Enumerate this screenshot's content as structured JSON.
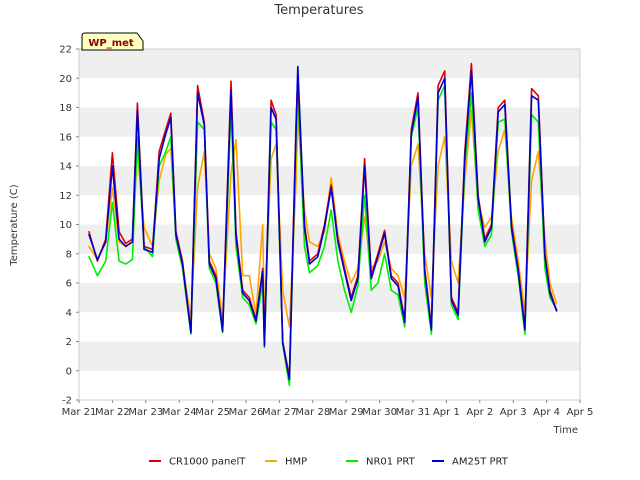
{
  "chart_data": {
    "type": "line",
    "title": "Temperatures",
    "xlabel": "Time",
    "ylabel": "Temperature (C)",
    "ylim": [
      -2,
      22
    ],
    "y_ticks": [
      -2,
      0,
      2,
      4,
      6,
      8,
      10,
      12,
      14,
      16,
      18,
      20,
      22
    ],
    "xlim_days": [
      0,
      15
    ],
    "x_ticks": [
      "Mar 21",
      "Mar 22",
      "Mar 23",
      "Mar 24",
      "Mar 25",
      "Mar 26",
      "Mar 27",
      "Mar 28",
      "Mar 29",
      "Mar 30",
      "Mar 31",
      "Apr 1",
      "Apr 2",
      "Apr 3",
      "Apr 4",
      "Apr 5"
    ],
    "grid": "horizontal bands",
    "legend_position": "bottom",
    "badge": "WP_met",
    "series": [
      {
        "name": "CR1000 panelT",
        "color": "#dd0000",
        "x": [
          0.3,
          0.55,
          0.8,
          1.0,
          1.2,
          1.4,
          1.6,
          1.75,
          1.95,
          2.2,
          2.4,
          2.6,
          2.75,
          2.9,
          3.1,
          3.35,
          3.55,
          3.75,
          3.9,
          4.1,
          4.3,
          4.55,
          4.7,
          4.9,
          5.1,
          5.3,
          5.5,
          5.55,
          5.75,
          5.9,
          6.1,
          6.3,
          6.5,
          6.55,
          6.75,
          6.9,
          7.15,
          7.35,
          7.55,
          7.75,
          7.95,
          8.15,
          8.35,
          8.55,
          8.75,
          8.95,
          9.15,
          9.35,
          9.55,
          9.75,
          9.95,
          10.15,
          10.35,
          10.55,
          10.75,
          10.95,
          11.15,
          11.35,
          11.55,
          11.75,
          11.95,
          12.15,
          12.35,
          12.55,
          12.75,
          12.95,
          13.15,
          13.35,
          13.55,
          13.75,
          13.95,
          14.1,
          14.3
        ],
        "y": [
          9.5,
          7.5,
          9,
          14.9,
          9.5,
          8.7,
          9,
          18.3,
          8.5,
          8.3,
          15,
          16.5,
          17.6,
          9.5,
          7.5,
          2.7,
          19.5,
          17,
          7.5,
          6.5,
          2.8,
          19.8,
          9.5,
          5.5,
          5,
          3.5,
          7,
          1.8,
          18.5,
          17.5,
          2,
          -0.4,
          17,
          20,
          10,
          7.5,
          8,
          10,
          12.7,
          9,
          7,
          5,
          6.5,
          14.5,
          6.5,
          8,
          9.6,
          6.5,
          6,
          3.5,
          16.5,
          19,
          7,
          3,
          19.5,
          20.5,
          5,
          4,
          15,
          21,
          12,
          9,
          10,
          18,
          18.5,
          10,
          7,
          3,
          19.3,
          18.8,
          8,
          5.5,
          4.1
        ]
      },
      {
        "name": "HMP",
        "color": "#ffa500",
        "x": [
          0.3,
          0.55,
          0.8,
          1.0,
          1.2,
          1.4,
          1.6,
          1.75,
          1.95,
          2.2,
          2.4,
          2.6,
          2.75,
          2.9,
          3.1,
          3.35,
          3.55,
          3.75,
          3.9,
          4.1,
          4.3,
          4.55,
          4.7,
          4.9,
          5.1,
          5.3,
          5.5,
          5.55,
          5.75,
          5.9,
          6.1,
          6.3,
          6.5,
          6.55,
          6.75,
          6.9,
          7.15,
          7.35,
          7.55,
          7.75,
          7.95,
          8.15,
          8.35,
          8.55,
          8.75,
          8.95,
          9.15,
          9.35,
          9.55,
          9.75,
          9.95,
          10.15,
          10.35,
          10.55,
          10.75,
          10.95,
          11.15,
          11.35,
          11.55,
          11.75,
          11.95,
          12.15,
          12.35,
          12.55,
          12.75,
          12.95,
          13.15,
          13.35,
          13.55,
          13.75,
          13.95,
          14.1,
          14.3
        ],
        "y": [
          8.5,
          7.6,
          8.8,
          12.5,
          8.8,
          8.5,
          8.8,
          15,
          9.8,
          8.5,
          13,
          14.8,
          15.2,
          9.2,
          7.3,
          3.5,
          12.5,
          15,
          8,
          7,
          3.5,
          13.5,
          15.8,
          6.5,
          6.5,
          3.8,
          10,
          3.5,
          14.5,
          15.5,
          5.5,
          3,
          13,
          17.5,
          11,
          8.8,
          8.5,
          9.5,
          13.2,
          9.3,
          7.5,
          6,
          7,
          10.5,
          7,
          7.5,
          8.8,
          7,
          6.5,
          5,
          14,
          15.5,
          8,
          5,
          14,
          16,
          7.5,
          6,
          13,
          17.8,
          11.5,
          9.8,
          10.5,
          15,
          16.5,
          10.5,
          7.5,
          4,
          13,
          15,
          9,
          6,
          4.6
        ]
      },
      {
        "name": "NR01 PRT",
        "color": "#00ee00",
        "x": [
          0.3,
          0.55,
          0.8,
          1.0,
          1.2,
          1.4,
          1.6,
          1.75,
          1.95,
          2.2,
          2.4,
          2.6,
          2.75,
          2.9,
          3.1,
          3.35,
          3.55,
          3.75,
          3.9,
          4.1,
          4.3,
          4.55,
          4.7,
          4.9,
          5.1,
          5.3,
          5.5,
          5.55,
          5.75,
          5.9,
          6.1,
          6.3,
          6.5,
          6.55,
          6.75,
          6.9,
          7.15,
          7.35,
          7.55,
          7.75,
          7.95,
          8.15,
          8.35,
          8.55,
          8.75,
          8.95,
          9.15,
          9.35,
          9.55,
          9.75,
          9.95,
          10.15,
          10.35,
          10.55,
          10.75,
          10.95,
          11.15,
          11.35,
          11.55,
          11.75,
          11.95,
          12.15,
          12.35,
          12.55,
          12.75,
          12.95,
          13.15,
          13.35,
          13.55,
          13.75,
          13.95,
          14.1,
          14.3
        ],
        "y": [
          7.8,
          6.5,
          7.5,
          11.5,
          7.5,
          7.3,
          7.6,
          16,
          8.5,
          7.8,
          14,
          15,
          16,
          9,
          7,
          2.5,
          17,
          16.5,
          7,
          6,
          2.6,
          18,
          8.5,
          5,
          4.5,
          3.2,
          6,
          1.6,
          17,
          16.5,
          1.8,
          -1,
          16,
          19,
          8.5,
          6.7,
          7.2,
          8.5,
          11,
          7.5,
          5.5,
          4,
          5.8,
          12,
          5.5,
          6,
          8,
          5.5,
          5.2,
          3,
          16,
          18,
          6,
          2.5,
          18.5,
          19.5,
          4.5,
          3.5,
          14,
          19,
          11,
          8.5,
          9.3,
          17,
          17.2,
          9.5,
          6.5,
          2.5,
          17.5,
          17,
          7,
          5,
          4.2
        ]
      },
      {
        "name": "AM25T PRT",
        "color": "#0000cc",
        "x": [
          0.3,
          0.55,
          0.8,
          1.0,
          1.2,
          1.4,
          1.6,
          1.75,
          1.95,
          2.2,
          2.4,
          2.6,
          2.75,
          2.9,
          3.1,
          3.35,
          3.55,
          3.75,
          3.9,
          4.1,
          4.3,
          4.55,
          4.7,
          4.9,
          5.1,
          5.3,
          5.5,
          5.55,
          5.75,
          5.9,
          6.1,
          6.3,
          6.5,
          6.55,
          6.75,
          6.9,
          7.15,
          7.35,
          7.55,
          7.75,
          7.95,
          8.15,
          8.35,
          8.55,
          8.75,
          8.95,
          9.15,
          9.35,
          9.55,
          9.75,
          9.95,
          10.15,
          10.35,
          10.55,
          10.75,
          10.95,
          11.15,
          11.35,
          11.55,
          11.75,
          11.95,
          12.15,
          12.35,
          12.55,
          12.75,
          12.95,
          13.15,
          13.35,
          13.55,
          13.75,
          13.95,
          14.1,
          14.3
        ],
        "y": [
          9.3,
          7.6,
          8.8,
          14,
          9,
          8.5,
          8.8,
          17.8,
          8.3,
          8.1,
          14.5,
          16.2,
          17.3,
          9.3,
          7.3,
          2.6,
          19,
          16.8,
          7.3,
          6.3,
          2.7,
          19.2,
          9.2,
          5.3,
          4.8,
          3.4,
          6.8,
          1.7,
          18,
          17.2,
          1.9,
          -0.6,
          16.6,
          20.8,
          9.8,
          7.3,
          7.8,
          9.8,
          12.5,
          8.8,
          6.8,
          4.8,
          6.3,
          14,
          6.3,
          7.8,
          9.4,
          6.3,
          5.8,
          3.3,
          16.2,
          18.7,
          6.8,
          2.8,
          19,
          20,
          4.8,
          3.8,
          14.6,
          20.5,
          11.8,
          8.8,
          9.8,
          17.7,
          18.2,
          9.8,
          6.8,
          2.8,
          18.8,
          18.5,
          7.8,
          5.3,
          4.1
        ]
      }
    ]
  }
}
